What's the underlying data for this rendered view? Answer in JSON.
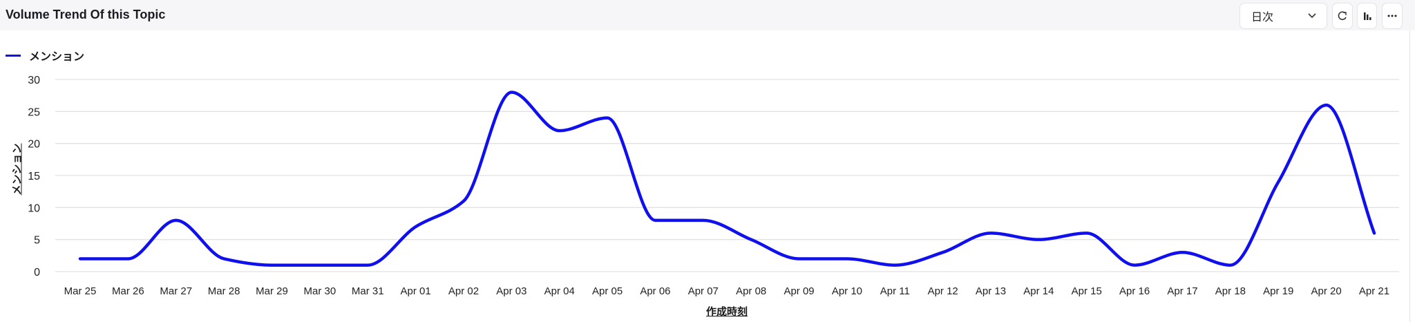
{
  "header": {
    "title": "Volume Trend Of this Topic",
    "interval_select": "日次",
    "refresh_icon": "refresh-icon",
    "chart_type_icon": "bar-chart-icon",
    "more_icon": "more-icon"
  },
  "chart_data": {
    "type": "line",
    "title": "Volume Trend Of this Topic",
    "xlabel": "作成時刻",
    "ylabel": "メンション",
    "ylim": [
      0,
      30
    ],
    "yticks": [
      0,
      5,
      10,
      15,
      20,
      25,
      30
    ],
    "grid": true,
    "legend_position": "top-left",
    "categories": [
      "Mar 25",
      "Mar 26",
      "Mar 27",
      "Mar 28",
      "Mar 29",
      "Mar 30",
      "Mar 31",
      "Apr 01",
      "Apr 02",
      "Apr 03",
      "Apr 04",
      "Apr 05",
      "Apr 06",
      "Apr 07",
      "Apr 08",
      "Apr 09",
      "Apr 10",
      "Apr 11",
      "Apr 12",
      "Apr 13",
      "Apr 14",
      "Apr 15",
      "Apr 16",
      "Apr 17",
      "Apr 18",
      "Apr 19",
      "Apr 20",
      "Apr 21"
    ],
    "series": [
      {
        "name": "メンション",
        "color": "#1010ee",
        "values": [
          2,
          2,
          8,
          2,
          1,
          1,
          1,
          7,
          11,
          28,
          22,
          24,
          8,
          8,
          5,
          2,
          2,
          1,
          3,
          6,
          5,
          6,
          1,
          3,
          1,
          14,
          26,
          6
        ]
      }
    ]
  }
}
